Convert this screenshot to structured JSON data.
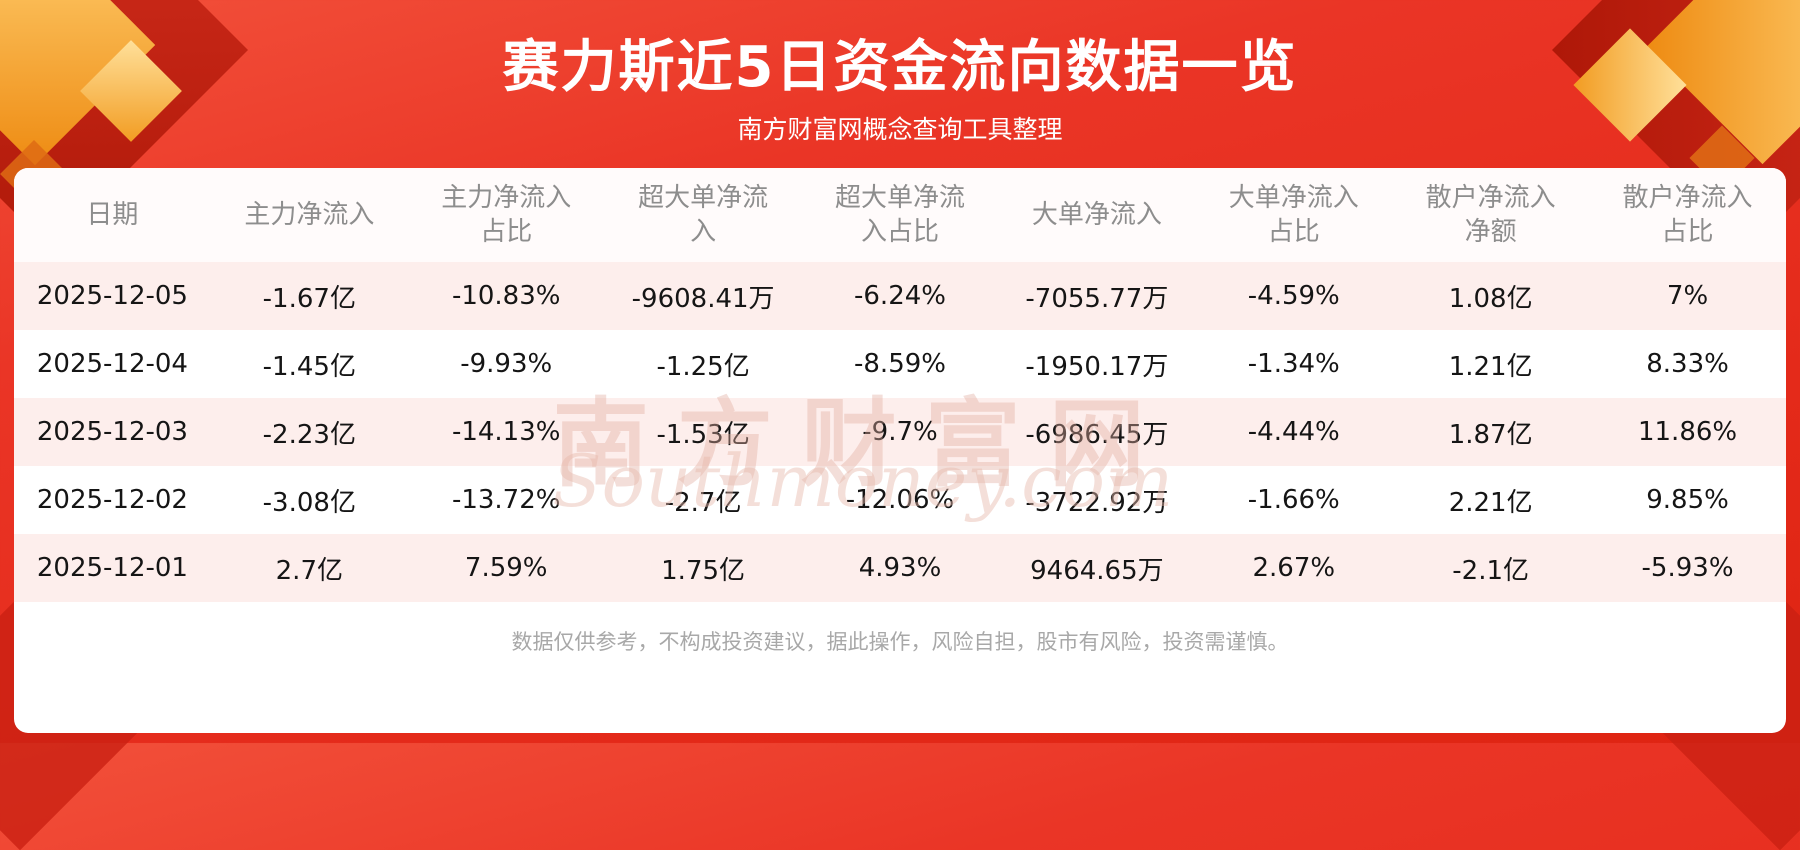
{
  "header": {
    "title": "赛力斯近5日资金流向数据一览",
    "subtitle": "南方财富网概念查询工具整理"
  },
  "chart_data": {
    "type": "table",
    "title": "赛力斯近5日资金流向数据一览",
    "columns": [
      "日期",
      "主力净流入",
      "主力净流入占比",
      "超大单净流入",
      "超大单净流入占比",
      "大单净流入",
      "大单净流入占比",
      "散户净流入净额",
      "散户净流入占比"
    ],
    "rows": [
      [
        "2025-12-05",
        "-1.67亿",
        "-10.83%",
        "-9608.41万",
        "-6.24%",
        "-7055.77万",
        "-4.59%",
        "1.08亿",
        "7%"
      ],
      [
        "2025-12-04",
        "-1.45亿",
        "-9.93%",
        "-1.25亿",
        "-8.59%",
        "-1950.17万",
        "-1.34%",
        "1.21亿",
        "8.33%"
      ],
      [
        "2025-12-03",
        "-2.23亿",
        "-14.13%",
        "-1.53亿",
        "-9.7%",
        "-6986.45万",
        "-4.44%",
        "1.87亿",
        "11.86%"
      ],
      [
        "2025-12-02",
        "-3.08亿",
        "-13.72%",
        "-2.7亿",
        "-12.06%",
        "-3722.92万",
        "-1.66%",
        "2.21亿",
        "9.85%"
      ],
      [
        "2025-12-01",
        "2.7亿",
        "7.59%",
        "1.75亿",
        "4.93%",
        "9464.65万",
        "2.67%",
        "-2.1亿",
        "-5.93%"
      ]
    ]
  },
  "watermark": {
    "text": "南方财富网",
    "subtext": "Southmoney.com"
  },
  "footer": {
    "disclaimer": "数据仅供参考，不构成投资建议，据此操作，风险自担，股市有风险，投资需谨慎。"
  },
  "colors": {
    "background_red": "#e42a1a",
    "row_stripe": "#fdeeec",
    "header_text": "#8d8d8d",
    "title_text": "#ffffff",
    "gold_accent": "#ee8b12"
  }
}
